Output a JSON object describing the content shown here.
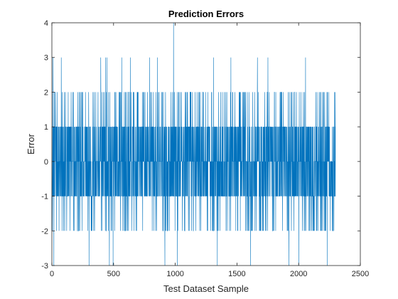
{
  "chart_data": {
    "type": "line",
    "title": "Prediction Errors",
    "xlabel": "Test Dataset Sample",
    "ylabel": "Error",
    "xlim": [
      0,
      2500
    ],
    "ylim": [
      -3,
      4
    ],
    "xticks": [
      "0",
      "500",
      "1000",
      "1500",
      "2000",
      "2500"
    ],
    "yticks": [
      "-3",
      "-2",
      "-1",
      "0",
      "1",
      "2",
      "3",
      "4"
    ],
    "grid": false,
    "series": [
      {
        "color": "#0072BD",
        "n_samples": 2300,
        "values_note": "integer prediction errors, mostly in [-1, 1], occasional spikes to -3..4",
        "spikes": [
          {
            "x": 8,
            "y": 3
          },
          {
            "x": 15,
            "y": -3
          },
          {
            "x": 75,
            "y": 3
          },
          {
            "x": 300,
            "y": -3
          },
          {
            "x": 395,
            "y": 3
          },
          {
            "x": 435,
            "y": 3
          },
          {
            "x": 445,
            "y": 3
          },
          {
            "x": 465,
            "y": -3
          },
          {
            "x": 495,
            "y": -3
          },
          {
            "x": 565,
            "y": 3
          },
          {
            "x": 635,
            "y": 3
          },
          {
            "x": 790,
            "y": 3
          },
          {
            "x": 855,
            "y": 3
          },
          {
            "x": 915,
            "y": -3
          },
          {
            "x": 985,
            "y": 4
          },
          {
            "x": 1015,
            "y": -3
          },
          {
            "x": 1310,
            "y": 3
          },
          {
            "x": 1340,
            "y": -3
          },
          {
            "x": 1450,
            "y": 3
          },
          {
            "x": 1610,
            "y": -3
          },
          {
            "x": 1665,
            "y": 3
          },
          {
            "x": 1750,
            "y": 3
          },
          {
            "x": 1920,
            "y": -3
          },
          {
            "x": 2000,
            "y": -3
          },
          {
            "x": 2055,
            "y": 3
          },
          {
            "x": 2230,
            "y": -3
          }
        ]
      }
    ]
  }
}
